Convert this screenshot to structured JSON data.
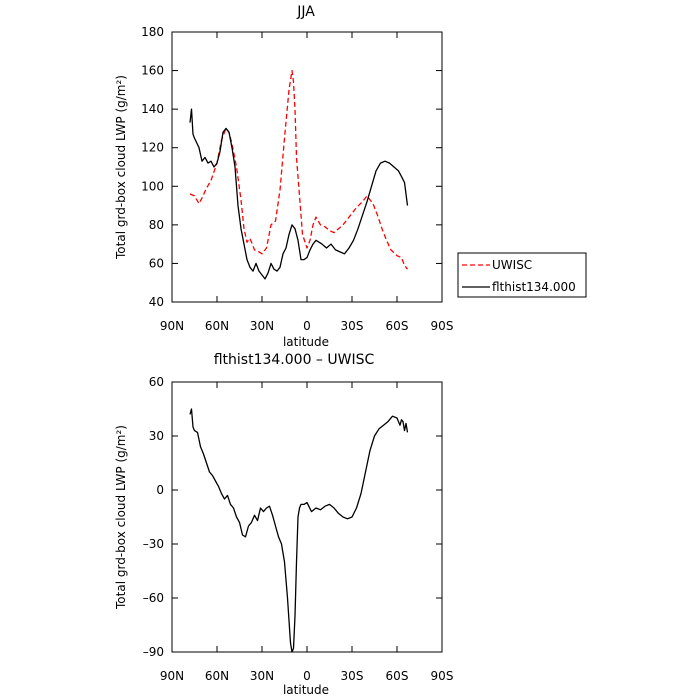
{
  "chart_data": [
    {
      "type": "line",
      "title": "JJA",
      "xlabel": "latitude",
      "ylabel": "Total grd-box cloud LWP (g/m²)",
      "xlim": [
        90,
        -90
      ],
      "ylim": [
        40,
        180
      ],
      "x_ticks": [
        90,
        60,
        30,
        0,
        -30,
        -60,
        -90
      ],
      "x_tick_labels": [
        "90N",
        "60N",
        "30N",
        "0",
        "30S",
        "60S",
        "90S"
      ],
      "y_ticks": [
        40,
        60,
        80,
        100,
        120,
        140,
        160,
        180
      ],
      "y_tick_labels": [
        "40",
        "60",
        "80",
        "100",
        "120",
        "140",
        "160",
        "180"
      ],
      "legend_position": "right",
      "series": [
        {
          "name": "UWISC",
          "color": "#ff0000",
          "dash": "dashed",
          "x": [
            78,
            75,
            72,
            70,
            67,
            64,
            60,
            57,
            54,
            52,
            50,
            47,
            44,
            42,
            40,
            38,
            35,
            32,
            30,
            27,
            24,
            21,
            18,
            15,
            12,
            10,
            9,
            8,
            7,
            5,
            3,
            0,
            -2,
            -4,
            -6,
            -9,
            -12,
            -15,
            -18,
            -21,
            -24,
            -27,
            -30,
            -33,
            -37,
            -40,
            -44,
            -47,
            -50,
            -53,
            -56,
            -60,
            -63,
            -65,
            -67
          ],
          "values": [
            96,
            95,
            91,
            94,
            99,
            103,
            112,
            124,
            130,
            128,
            122,
            110,
            93,
            78,
            71,
            73,
            67,
            66,
            65,
            68,
            80,
            82,
            98,
            125,
            150,
            160,
            154,
            140,
            115,
            95,
            75,
            68,
            72,
            80,
            84,
            80,
            79,
            77,
            76,
            78,
            80,
            83,
            86,
            89,
            92,
            95,
            91,
            85,
            78,
            72,
            67,
            64,
            63,
            59,
            57
          ]
        },
        {
          "name": "flthist134.000",
          "color": "#000000",
          "dash": "solid",
          "x": [
            78,
            77,
            76,
            75,
            72,
            70,
            68,
            66,
            64,
            62,
            60,
            58,
            56,
            54,
            52,
            50,
            48,
            46,
            44,
            42,
            40,
            38,
            36,
            34,
            32,
            30,
            28,
            26,
            24,
            22,
            20,
            18,
            16,
            14,
            12,
            10,
            8,
            6,
            4,
            2,
            0,
            -2,
            -4,
            -6,
            -8,
            -10,
            -13,
            -16,
            -19,
            -22,
            -25,
            -28,
            -31,
            -34,
            -37,
            -40,
            -43,
            -46,
            -49,
            -52,
            -55,
            -58,
            -61,
            -63,
            -65,
            -67
          ],
          "values": [
            133,
            140,
            127,
            125,
            120,
            113,
            115,
            112,
            113,
            110,
            112,
            118,
            128,
            130,
            128,
            120,
            110,
            90,
            78,
            70,
            62,
            58,
            56,
            60,
            56,
            54,
            52,
            55,
            60,
            57,
            56,
            58,
            65,
            68,
            75,
            80,
            78,
            72,
            62,
            62,
            63,
            67,
            70,
            72,
            71,
            70,
            68,
            70,
            67,
            66,
            65,
            68,
            72,
            78,
            85,
            92,
            100,
            108,
            112,
            113,
            112,
            110,
            108,
            105,
            102,
            90
          ]
        }
      ]
    },
    {
      "type": "line",
      "title": "flthist134.000 – UWISC",
      "xlabel": "latitude",
      "ylabel": "Total grd-box cloud LWP (g/m²)",
      "xlim": [
        90,
        -90
      ],
      "ylim": [
        -90,
        60
      ],
      "x_ticks": [
        90,
        60,
        30,
        0,
        -30,
        -60,
        -90
      ],
      "x_tick_labels": [
        "90N",
        "60N",
        "30N",
        "0",
        "30S",
        "60S",
        "90S"
      ],
      "y_ticks": [
        -90,
        -60,
        -30,
        0,
        30,
        60
      ],
      "y_tick_labels": [
        "–90",
        "–60",
        "–30",
        "0",
        "30",
        "60"
      ],
      "series": [
        {
          "name": "",
          "color": "#000000",
          "dash": "solid",
          "x": [
            78,
            77,
            76,
            75,
            73,
            71,
            69,
            67,
            65,
            63,
            61,
            59,
            57,
            55,
            53,
            51,
            49,
            47,
            45,
            43,
            41,
            39,
            37,
            35,
            33,
            31,
            29,
            27,
            25,
            23,
            21,
            19,
            17,
            15,
            13,
            11,
            10,
            9,
            8,
            7,
            6,
            5,
            4,
            2,
            0,
            -3,
            -6,
            -9,
            -12,
            -15,
            -18,
            -21,
            -24,
            -27,
            -30,
            -33,
            -36,
            -39,
            -42,
            -45,
            -48,
            -51,
            -54,
            -57,
            -60,
            -62,
            -63,
            -64,
            -65,
            -66,
            -67
          ],
          "values": [
            42,
            45,
            35,
            33,
            32,
            24,
            20,
            15,
            10,
            8,
            5,
            2,
            -2,
            -5,
            -3,
            -8,
            -10,
            -15,
            -18,
            -25,
            -26,
            -20,
            -18,
            -14,
            -17,
            -10,
            -12,
            -10,
            -9,
            -14,
            -20,
            -26,
            -30,
            -40,
            -60,
            -85,
            -90,
            -88,
            -70,
            -40,
            -15,
            -10,
            -8,
            -8,
            -7,
            -12,
            -10,
            -11,
            -9,
            -8,
            -10,
            -13,
            -15,
            -16,
            -15,
            -10,
            -2,
            10,
            22,
            30,
            34,
            36,
            38,
            41,
            40,
            36,
            39,
            38,
            33,
            37,
            32
          ]
        }
      ]
    }
  ]
}
